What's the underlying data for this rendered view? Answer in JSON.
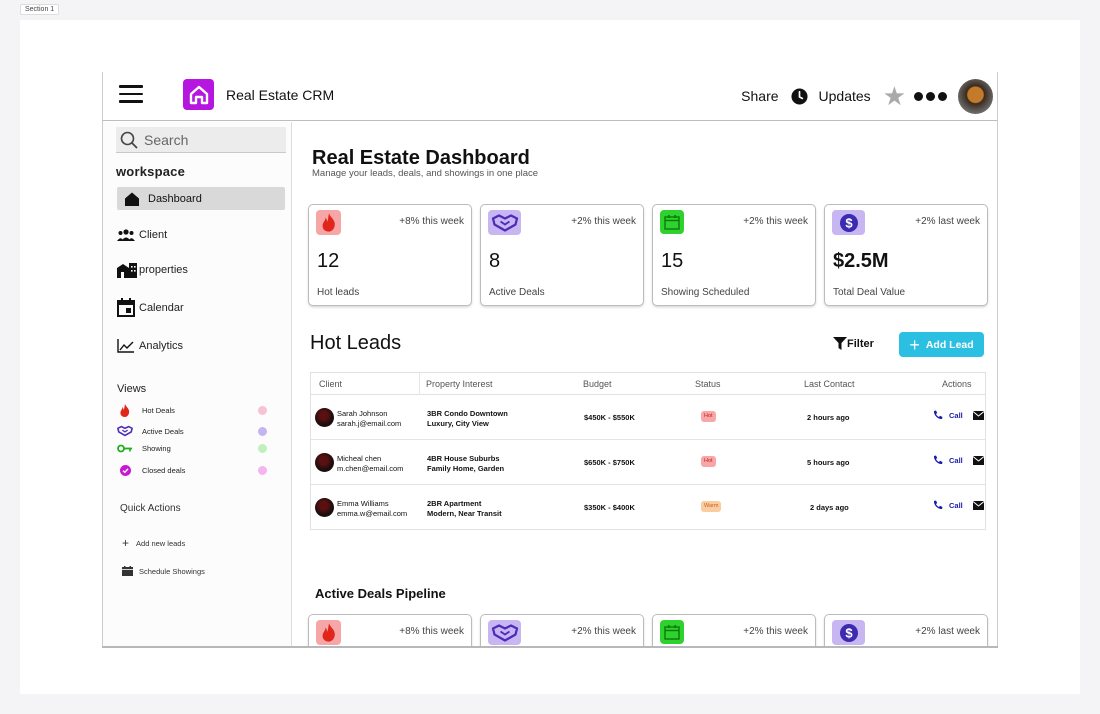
{
  "canvas": {
    "section_label": "Section 1"
  },
  "header": {
    "app_title": "Real Estate CRM",
    "share_label": "Share",
    "updates_label": "Updates"
  },
  "sidebar": {
    "search_placeholder": "Search",
    "workspace_label": "workspace",
    "nav": [
      {
        "label": "Dashboard",
        "icon": "home-icon"
      },
      {
        "label": "Client",
        "icon": "people-icon"
      },
      {
        "label": "properties",
        "icon": "buildings-icon"
      },
      {
        "label": "Calendar",
        "icon": "calendar-icon"
      },
      {
        "label": "Analytics",
        "icon": "trend-chart-icon"
      }
    ],
    "views_title": "Views",
    "views": [
      {
        "label": "Hot Deals",
        "icon": "fire-icon",
        "dot_color": "#f7c2d6"
      },
      {
        "label": "Active Deals",
        "icon": "handshake-icon",
        "dot_color": "#c6b3f2"
      },
      {
        "label": "Showing",
        "icon": "key-icon",
        "dot_color": "#bff0bd"
      },
      {
        "label": "Closed deals",
        "icon": "check-circle-icon",
        "dot_color": "#f5b4ef"
      }
    ],
    "quick_actions_title": "Quick Actions",
    "quick_actions": [
      {
        "label": "Add new leads",
        "icon": "plus-icon"
      },
      {
        "label": "Schedule Showings",
        "icon": "calendar-icon"
      }
    ]
  },
  "main": {
    "title": "Real Estate Dashboard",
    "subtitle": "Manage your leads, deals, and showings in one place",
    "stats": [
      {
        "delta": "+8% this week",
        "value": "12",
        "label": "Hot leads",
        "icon": "fire-icon",
        "icon_bg": "#f6a6a6"
      },
      {
        "delta": "+2% this week",
        "value": "8",
        "label": "Active Deals",
        "icon": "handshake-icon",
        "icon_bg": "#c8b6f3"
      },
      {
        "delta": "+2% this week",
        "value": "15",
        "label": "Showing Scheduled",
        "icon": "calendar-icon",
        "icon_bg": "#2ed12e"
      },
      {
        "delta": "+2% last week",
        "value": "$2.5M",
        "label": "Total Deal Value",
        "icon": "dollar-icon",
        "icon_bg": "#c8b6f3"
      }
    ],
    "hot_leads": {
      "title": "Hot Leads",
      "filter_label": "Filter",
      "add_label": "Add Lead",
      "columns": [
        "Client",
        "Property Interest",
        "Budget",
        "Status",
        "Last Contact",
        "Actions"
      ],
      "rows": [
        {
          "name": "Sarah Johnson",
          "email": "sarah.j@email.com",
          "prop1": "3BR Condo Downtown",
          "prop2": "Luxury, City View",
          "budget": "$450K - $550K",
          "status": "Hot",
          "status_type": "hot",
          "last_contact": "2 hours ago",
          "call_label": "Call"
        },
        {
          "name": "Micheal chen",
          "email": "m.chen@email.com",
          "prop1": "4BR House Suburbs",
          "prop2": "Family Home, Garden",
          "budget": "$650K - $750K",
          "status": "Hot",
          "status_type": "hot",
          "last_contact": "5 hours ago",
          "call_label": "Call"
        },
        {
          "name": "Emma Williams",
          "email": "emma.w@email.com",
          "prop1": "2BR Apartment",
          "prop2": "Modern, Near Transit",
          "budget": "$350K - $400K",
          "status": "Warm",
          "status_type": "warm",
          "last_contact": "2 days ago",
          "call_label": "Call"
        }
      ]
    },
    "pipeline_title": "Active Deals Pipeline",
    "pipeline_stats": [
      {
        "delta": "+8% this week",
        "icon": "fire-icon",
        "icon_bg": "#f6a6a6"
      },
      {
        "delta": "+2% this week",
        "icon": "handshake-icon",
        "icon_bg": "#c8b6f3"
      },
      {
        "delta": "+2% this week",
        "icon": "calendar-icon",
        "icon_bg": "#2ed12e"
      },
      {
        "delta": "+2% last week",
        "icon": "dollar-icon",
        "icon_bg": "#c8b6f3"
      }
    ]
  }
}
